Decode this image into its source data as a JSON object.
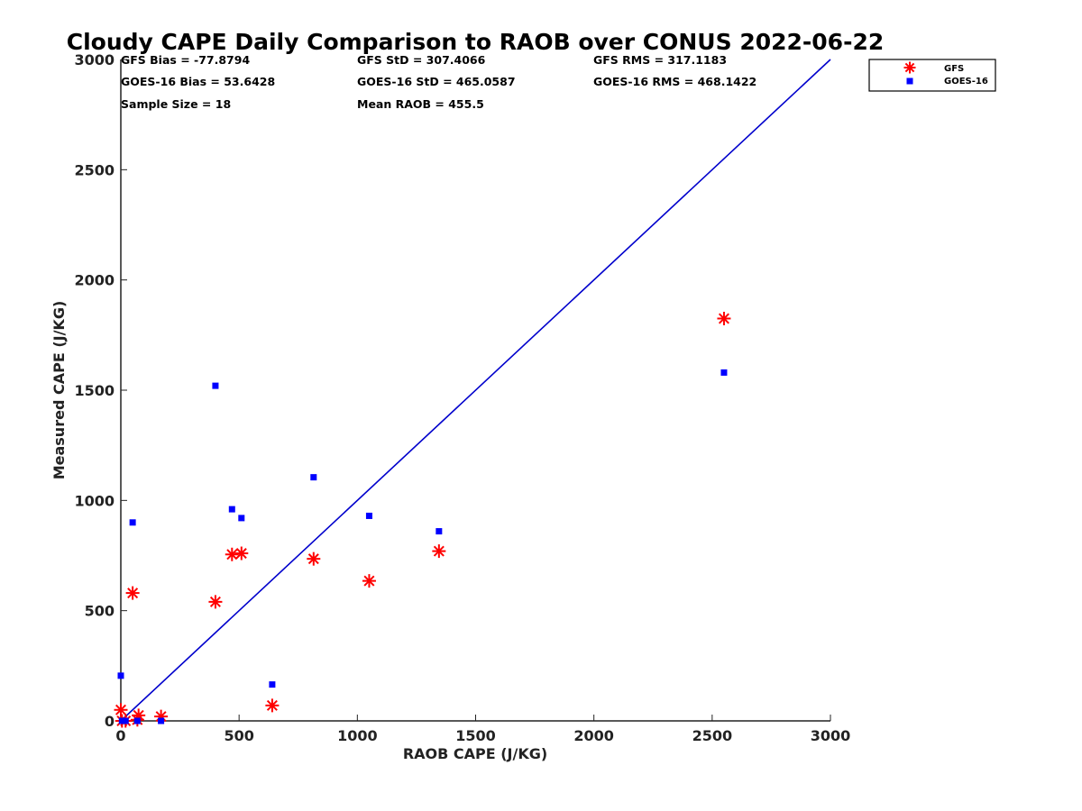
{
  "chart_data": {
    "type": "scatter",
    "title": "Cloudy CAPE Daily Comparison to RAOB over CONUS 2022-06-22",
    "xlabel": "RAOB CAPE (J/KG)",
    "ylabel": "Measured CAPE (J/KG)",
    "xlim": [
      0,
      3000
    ],
    "ylim": [
      0,
      3000
    ],
    "xticks": [
      0,
      500,
      1000,
      1500,
      2000,
      2500,
      3000
    ],
    "yticks": [
      0,
      500,
      1000,
      1500,
      2000,
      2500,
      3000
    ],
    "grid": false,
    "legend_position": "top-right-outside",
    "stats": {
      "gfs_bias": "GFS Bias = -77.8794",
      "goes_bias": "GOES-16 Bias = 53.6428",
      "sample_size": "Sample Size = 18",
      "gfs_std": "GFS StD = 307.4066",
      "goes_std": "GOES-16 StD = 465.0587",
      "mean_raob": "Mean RAOB = 455.5",
      "gfs_rms": "GFS RMS = 317.1183",
      "goes_rms": "GOES-16 RMS = 468.1422"
    },
    "reference_line": {
      "name": "1:1 line",
      "x": [
        0,
        3000
      ],
      "y": [
        0,
        3000
      ],
      "color": "#0000cc"
    },
    "series": [
      {
        "name": "GFS",
        "marker": "asterisk",
        "color": "#ff0000",
        "x": [
          0,
          5,
          20,
          50,
          70,
          75,
          170,
          400,
          470,
          510,
          640,
          815,
          1050,
          1345,
          2550
        ],
        "y": [
          50,
          0,
          0,
          580,
          5,
          25,
          20,
          540,
          755,
          760,
          70,
          735,
          635,
          770,
          1825
        ]
      },
      {
        "name": "GOES-16",
        "marker": "square",
        "color": "#0000ff",
        "x": [
          0,
          5,
          20,
          50,
          70,
          170,
          400,
          470,
          510,
          640,
          815,
          1050,
          1345,
          2550
        ],
        "y": [
          205,
          0,
          0,
          900,
          0,
          0,
          1520,
          960,
          920,
          165,
          1105,
          930,
          860,
          1580
        ]
      }
    ]
  }
}
